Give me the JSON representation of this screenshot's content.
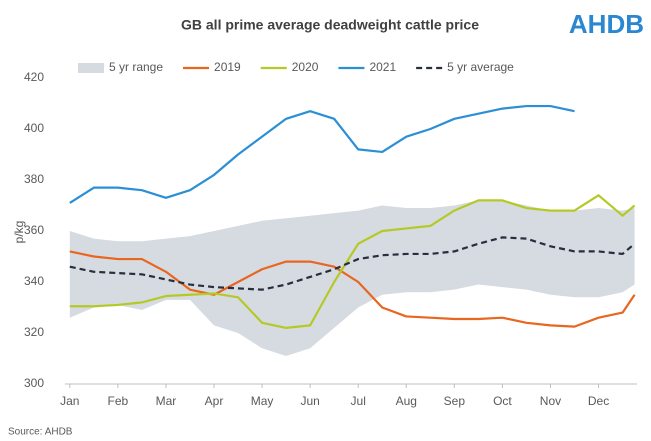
{
  "logo": "AHDB",
  "source": "Source: AHDB",
  "chart_data": {
    "type": "line",
    "title": "GB all prime average deadweight cattle price",
    "y_label": "p/kg",
    "x": [
      0,
      0.5,
      1,
      1.5,
      2,
      2.5,
      3,
      3.5,
      4,
      4.5,
      5,
      5.5,
      6,
      6.5,
      7,
      7.5,
      8,
      8.5,
      9,
      9.5,
      10,
      10.5,
      11,
      11.5,
      11.75
    ],
    "xlim": [
      -0.1,
      11.8
    ],
    "xticks": [
      {
        "value": 0,
        "label": "Jan"
      },
      {
        "value": 1,
        "label": "Feb"
      },
      {
        "value": 2,
        "label": "Mar"
      },
      {
        "value": 3,
        "label": "Apr"
      },
      {
        "value": 4,
        "label": "May"
      },
      {
        "value": 5,
        "label": "Jun"
      },
      {
        "value": 6,
        "label": "Jul"
      },
      {
        "value": 7,
        "label": "Aug"
      },
      {
        "value": 8,
        "label": "Sep"
      },
      {
        "value": 9,
        "label": "Oct"
      },
      {
        "value": 10,
        "label": "Nov"
      },
      {
        "value": 11,
        "label": "Dec"
      }
    ],
    "ylim": [
      300,
      420
    ],
    "yticks": [
      300,
      320,
      340,
      360,
      380,
      400,
      420
    ],
    "grid": false,
    "legend": "top",
    "series": [
      {
        "name": "5 yr range",
        "color": "#d6dbe1",
        "kind": "range",
        "high": [
          360,
          357,
          356,
          356,
          357,
          358,
          360,
          362,
          364,
          365,
          366,
          367,
          368,
          370,
          369,
          369,
          370,
          372,
          372,
          370,
          368,
          368,
          369,
          368,
          369
        ],
        "low": [
          326,
          330,
          331,
          329,
          333,
          333,
          323,
          320,
          314,
          311,
          314,
          322,
          330,
          335,
          336,
          336,
          337,
          339,
          338,
          337,
          335,
          334,
          334,
          336,
          339
        ]
      },
      {
        "name": "2019",
        "color": "#e8661f",
        "values": [
          352,
          350,
          349,
          349,
          344,
          337,
          335,
          340,
          345,
          348,
          348,
          346,
          340,
          330,
          326.5,
          326,
          325.5,
          325.5,
          326,
          324,
          323,
          322.5,
          326,
          328,
          335
        ]
      },
      {
        "name": "2020",
        "color": "#b5c926",
        "values": [
          330.5,
          330.5,
          331,
          332,
          334.5,
          335,
          335.5,
          334,
          324,
          322,
          323,
          340,
          355,
          360,
          361,
          362,
          368,
          372,
          372,
          369,
          368,
          368,
          374,
          366,
          370
        ]
      },
      {
        "name": "2021",
        "color": "#2b8fd6",
        "values": [
          371,
          377,
          377,
          376,
          373,
          376,
          382,
          390,
          397,
          404,
          407,
          404,
          392,
          391,
          397,
          400,
          404,
          406,
          408,
          409,
          409,
          407,
          null,
          null,
          null
        ]
      },
      {
        "name": "5 yr average",
        "color": "#262f3d",
        "dash": true,
        "values": [
          346,
          344,
          343.5,
          343,
          341,
          339,
          338,
          337.5,
          337,
          339,
          342,
          345,
          349,
          350.5,
          351,
          351,
          352,
          355,
          357.5,
          357,
          354,
          352,
          352,
          351,
          355
        ]
      }
    ]
  }
}
